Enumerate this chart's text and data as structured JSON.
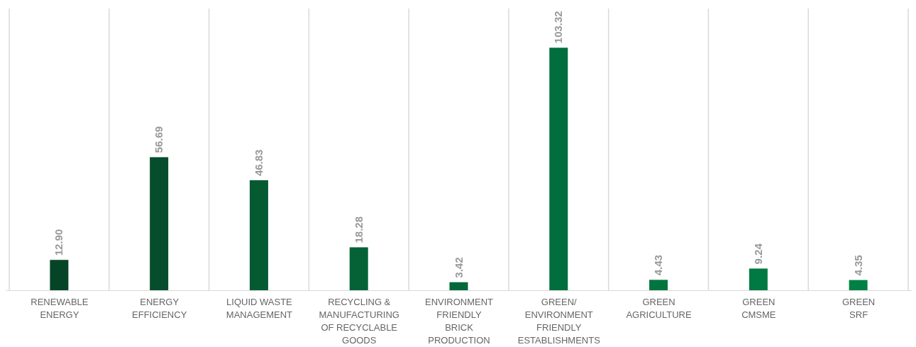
{
  "chart_data": {
    "type": "bar",
    "categories": [
      "RENEWABLE\nENERGY",
      "ENERGY\nEFFICIENCY",
      "LIQUID WASTE\nMANAGEMENT",
      "RECYCLING &\nMANUFACTURING\nOF RECYCLABLE\nGOODS",
      "ENVIRONMENT\nFRIENDLY\nBRICK\nPRODUCTION",
      "GREEN/\nENVIRONMENT\nFRIENDLY\nESTABLISHMENTS",
      "GREEN\nAGRICULTURE",
      "GREEN\nCMSME",
      "GREEN\nSRF"
    ],
    "values": [
      12.9,
      56.69,
      46.83,
      18.28,
      3.42,
      103.32,
      4.43,
      9.24,
      4.35
    ],
    "value_labels": [
      "12.90",
      "56.69",
      "46.83",
      "18.28",
      "3.42",
      "103.32",
      "4.43",
      "9.24",
      "4.35"
    ],
    "colors": [
      "#064427",
      "#054d2c",
      "#055a32",
      "#056237",
      "#056838",
      "#006e3d",
      "#00753f",
      "#007a42",
      "#008044"
    ],
    "ylim": [
      0,
      120
    ],
    "grid": "x",
    "tick_labels": "x"
  }
}
